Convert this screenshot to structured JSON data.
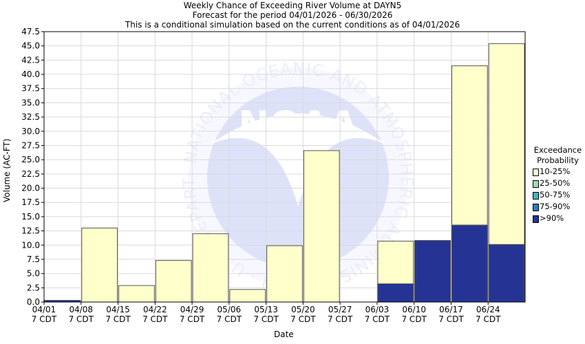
{
  "chart_data": {
    "type": "bar",
    "title_lines": [
      "Weekly Chance of Exceeding River Volume at DAYN5",
      "Forecast for the period 04/01/2026 - 06/30/2026",
      "This is a conditional simulation based on the current conditions as of 04/01/2026"
    ],
    "xlabel": "Date",
    "ylabel": "Volume (AC-FT)",
    "ylim": [
      0,
      47.5
    ],
    "y_ticks": [
      "0.0",
      "2.5",
      "5.0",
      "7.5",
      "10.0",
      "12.5",
      "15.0",
      "17.5",
      "20.0",
      "22.5",
      "25.0",
      "27.5",
      "30.0",
      "32.5",
      "35.0",
      "37.5",
      "40.0",
      "42.5",
      "45.0",
      "47.5"
    ],
    "x_ticks": [
      [
        "04/01",
        "7 CDT"
      ],
      [
        "04/08",
        "7 CDT"
      ],
      [
        "04/15",
        "7 CDT"
      ],
      [
        "04/22",
        "7 CDT"
      ],
      [
        "04/29",
        "7 CDT"
      ],
      [
        "05/06",
        "7 CDT"
      ],
      [
        "05/13",
        "7 CDT"
      ],
      [
        "05/20",
        "7 CDT"
      ],
      [
        "05/27",
        "7 CDT"
      ],
      [
        "06/03",
        "7 CDT"
      ],
      [
        "06/10",
        "7 CDT"
      ],
      [
        "06/17",
        "7 CDT"
      ],
      [
        "06/24",
        "7 CDT"
      ]
    ],
    "categories": [
      "04/01",
      "04/08",
      "04/15",
      "04/22",
      "04/29",
      "05/06",
      "05/13",
      "05/20",
      "05/27",
      "06/03",
      "06/10",
      "06/17",
      "06/24"
    ],
    "series": [
      {
        "name": "10-25%",
        "color": "#ffffcc",
        "values": [
          0.3,
          13.0,
          2.9,
          7.3,
          12.0,
          2.2,
          9.9,
          26.6,
          0,
          10.7,
          10.8,
          41.5,
          45.4
        ]
      },
      {
        "name": "25-50%",
        "color": "#a1dab4",
        "values": [
          0.3,
          0,
          0,
          0,
          0,
          0,
          0,
          0,
          0,
          3.2,
          10.8,
          13.5,
          10.1
        ]
      },
      {
        "name": "50-75%",
        "color": "#41b6c4",
        "values": [
          0.3,
          0,
          0,
          0,
          0,
          0,
          0,
          0,
          0,
          3.2,
          10.8,
          13.5,
          10.1
        ]
      },
      {
        "name": "75-90%",
        "color": "#2c7fb8",
        "values": [
          0.3,
          0,
          0,
          0,
          0,
          0,
          0,
          0,
          0,
          3.2,
          10.8,
          13.5,
          10.1
        ]
      },
      {
        "name": ">90%",
        "color": "#253494",
        "values": [
          0.3,
          0,
          0,
          0,
          0,
          0,
          0,
          0,
          0,
          3.2,
          10.8,
          13.5,
          10.1
        ]
      }
    ],
    "legend_title_lines": [
      "Exceedance",
      "Probability"
    ],
    "legend_position": "right",
    "grid": true,
    "grid_color": "#d9d9d9",
    "watermark": "NOAA",
    "watermark_ring_text": "NATIONAL OCEANIC AND ATMOSPHERIC ADMINISTRATION · U.S. DEPARTMENT OF COMMERCE"
  }
}
